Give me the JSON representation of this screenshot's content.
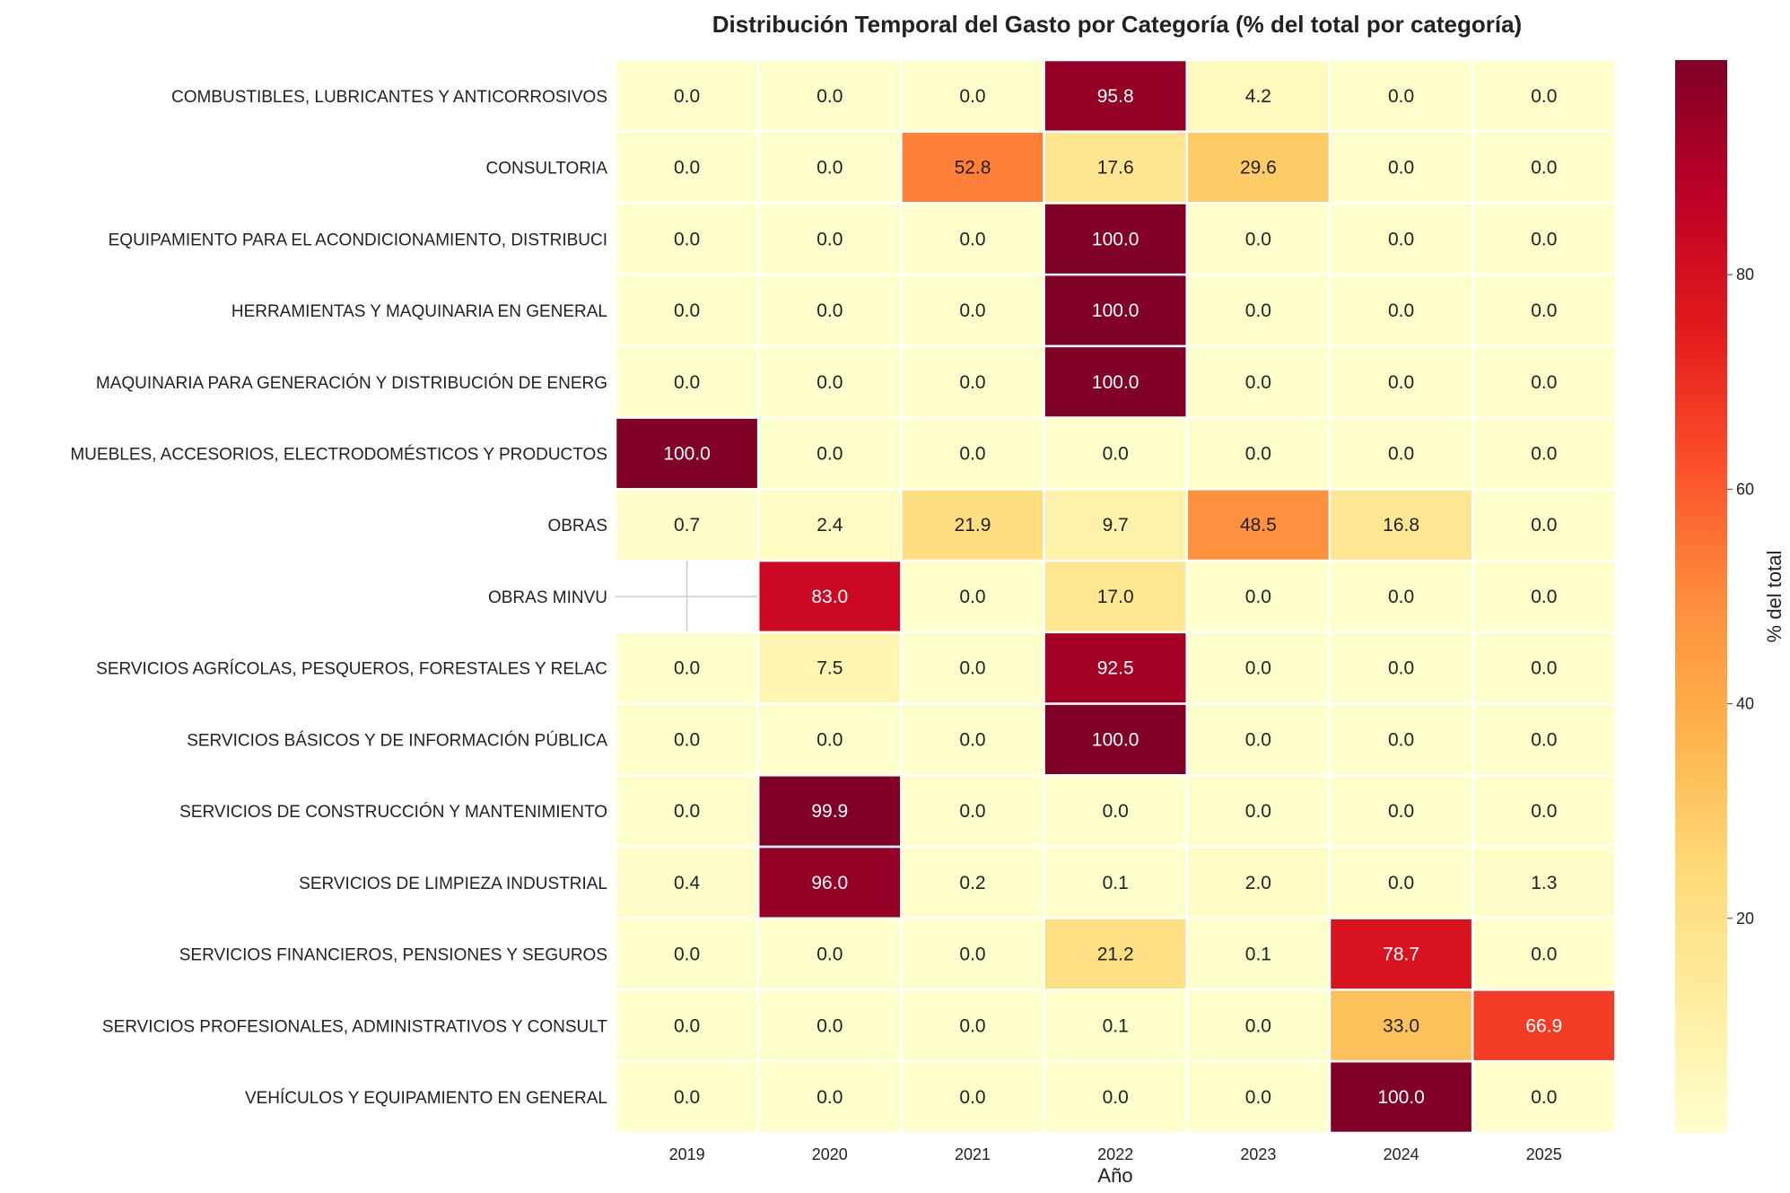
{
  "chart_data": {
    "type": "heatmap",
    "title": "Distribución Temporal del Gasto por Categoría (% del total por categoría)",
    "xlabel": "Año",
    "ylabel": "",
    "x": [
      "2019",
      "2020",
      "2021",
      "2022",
      "2023",
      "2024",
      "2025"
    ],
    "y": [
      "COMBUSTIBLES, LUBRICANTES Y ANTICORROSIVOS",
      "CONSULTORIA",
      "EQUIPAMIENTO PARA EL ACONDICIONAMIENTO, DISTRIBUCI",
      "HERRAMIENTAS Y MAQUINARIA EN GENERAL",
      "MAQUINARIA PARA GENERACIÓN Y DISTRIBUCIÓN DE ENERG",
      "MUEBLES, ACCESORIOS, ELECTRODOMÉSTICOS Y PRODUCTOS",
      "OBRAS",
      "OBRAS MINVU",
      "SERVICIOS AGRÍCOLAS, PESQUEROS, FORESTALES Y RELAC",
      "SERVICIOS BÁSICOS Y DE INFORMACIÓN PÚBLICA",
      "SERVICIOS DE CONSTRUCCIÓN Y MANTENIMIENTO",
      "SERVICIOS DE LIMPIEZA INDUSTRIAL",
      "SERVICIOS FINANCIEROS, PENSIONES Y SEGUROS",
      "SERVICIOS PROFESIONALES, ADMINISTRATIVOS Y CONSULT",
      "VEHÍCULOS Y EQUIPAMIENTO EN GENERAL"
    ],
    "values": [
      [
        0.0,
        0.0,
        0.0,
        95.8,
        4.2,
        0.0,
        0.0
      ],
      [
        0.0,
        0.0,
        52.8,
        17.6,
        29.6,
        0.0,
        0.0
      ],
      [
        0.0,
        0.0,
        0.0,
        100.0,
        0.0,
        0.0,
        0.0
      ],
      [
        0.0,
        0.0,
        0.0,
        100.0,
        0.0,
        0.0,
        0.0
      ],
      [
        0.0,
        0.0,
        0.0,
        100.0,
        0.0,
        0.0,
        0.0
      ],
      [
        100.0,
        0.0,
        0.0,
        0.0,
        0.0,
        0.0,
        0.0
      ],
      [
        0.7,
        2.4,
        21.9,
        9.7,
        48.5,
        16.8,
        0.0
      ],
      [
        null,
        83.0,
        0.0,
        17.0,
        0.0,
        0.0,
        0.0
      ],
      [
        0.0,
        7.5,
        0.0,
        92.5,
        0.0,
        0.0,
        0.0
      ],
      [
        0.0,
        0.0,
        0.0,
        100.0,
        0.0,
        0.0,
        0.0
      ],
      [
        0.0,
        99.9,
        0.0,
        0.0,
        0.0,
        0.0,
        0.0
      ],
      [
        0.4,
        96.0,
        0.2,
        0.1,
        2.0,
        0.0,
        1.3
      ],
      [
        0.0,
        0.0,
        0.0,
        21.2,
        0.1,
        78.7,
        0.0
      ],
      [
        0.0,
        0.0,
        0.0,
        0.1,
        0.0,
        33.0,
        66.9
      ],
      [
        0.0,
        0.0,
        0.0,
        0.0,
        0.0,
        100.0,
        0.0
      ]
    ],
    "value_format_decimals": 1,
    "colormap": "YlOrRd",
    "colormap_stops": [
      "#ffffcc",
      "#ffeda0",
      "#fed976",
      "#feb24c",
      "#fd8d3c",
      "#fc4e2a",
      "#e31a1c",
      "#bd0026",
      "#800026"
    ],
    "vmin": 0,
    "vmax": 100,
    "colorbar": {
      "label": "% del total",
      "ticks": [
        20,
        40,
        60,
        80
      ]
    },
    "grid": true
  }
}
